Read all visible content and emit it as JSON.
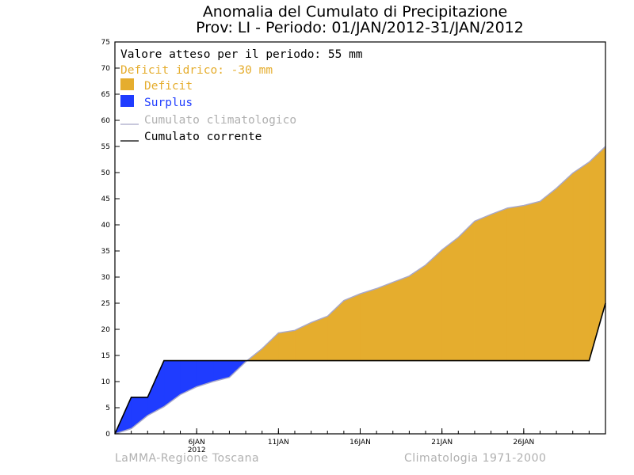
{
  "page": {
    "title_line1": "Anomalia del Cumulato di Precipitazione",
    "title_line2": "Prov: LI - Periodo: 01/JAN/2012-31/JAN/2012",
    "footer_left": "LaMMA-Regione Toscana",
    "footer_right": "Climatologia 1971-2000"
  },
  "legend": {
    "expected": "Valore atteso per il periodo: 55 mm",
    "deficit_note": "Deficit idrico: -30 mm",
    "deficit_label": "Deficit",
    "surplus_label": "Surplus",
    "climatological_label": "Cumulato climatologico",
    "current_label": "Cumulato corrente"
  },
  "colors": {
    "deficit": "#e5ad2e",
    "surplus": "#1f3cff",
    "climatological": "#a8a8c8",
    "current": "#000000",
    "deficit_text": "#e5ad2e",
    "surplus_text": "#1f3cff",
    "climatological_text": "#b0b0b0"
  },
  "chart_data": {
    "type": "area",
    "title": "Anomalia del Cumulato di Precipitazione",
    "subtitle": "Prov: LI - Periodo: 01/JAN/2012-31/JAN/2012",
    "xlim": [
      1,
      31
    ],
    "ylim": [
      0,
      75
    ],
    "yticks": [
      0,
      5,
      10,
      15,
      20,
      25,
      30,
      35,
      40,
      45,
      50,
      55,
      60,
      65,
      70,
      75
    ],
    "xticks": [
      {
        "x": 6,
        "label": "6JAN",
        "sublabel": "2012"
      },
      {
        "x": 11,
        "label": "11JAN",
        "sublabel": ""
      },
      {
        "x": 16,
        "label": "16JAN",
        "sublabel": ""
      },
      {
        "x": 21,
        "label": "21JAN",
        "sublabel": ""
      },
      {
        "x": 26,
        "label": "26JAN",
        "sublabel": ""
      }
    ],
    "x": [
      1,
      2,
      3,
      4,
      5,
      6,
      7,
      8,
      9,
      10,
      11,
      12,
      13,
      14,
      15,
      16,
      17,
      18,
      19,
      20,
      21,
      22,
      23,
      24,
      25,
      26,
      27,
      28,
      29,
      30,
      31
    ],
    "series": [
      {
        "name": "Cumulato climatologico",
        "values": [
          0,
          1,
          3.5,
          5.2,
          7.5,
          9,
          10,
          10.8,
          13.8,
          16.3,
          19.3,
          19.8,
          21.3,
          22.5,
          25.5,
          26.8,
          27.8,
          29,
          30.2,
          32.3,
          35.2,
          37.6,
          40.7,
          42,
          43.2,
          43.7,
          44.5,
          47,
          49.9,
          52,
          55
        ]
      },
      {
        "name": "Cumulato corrente",
        "values": [
          0,
          7,
          7,
          14,
          14,
          14,
          14,
          14,
          14,
          14,
          14,
          14,
          14,
          14,
          14,
          14,
          14,
          14,
          14,
          14,
          14,
          14,
          14,
          14,
          14,
          14,
          14,
          14,
          14,
          14,
          25
        ]
      }
    ],
    "grid": false,
    "legend_position": "top-left"
  }
}
